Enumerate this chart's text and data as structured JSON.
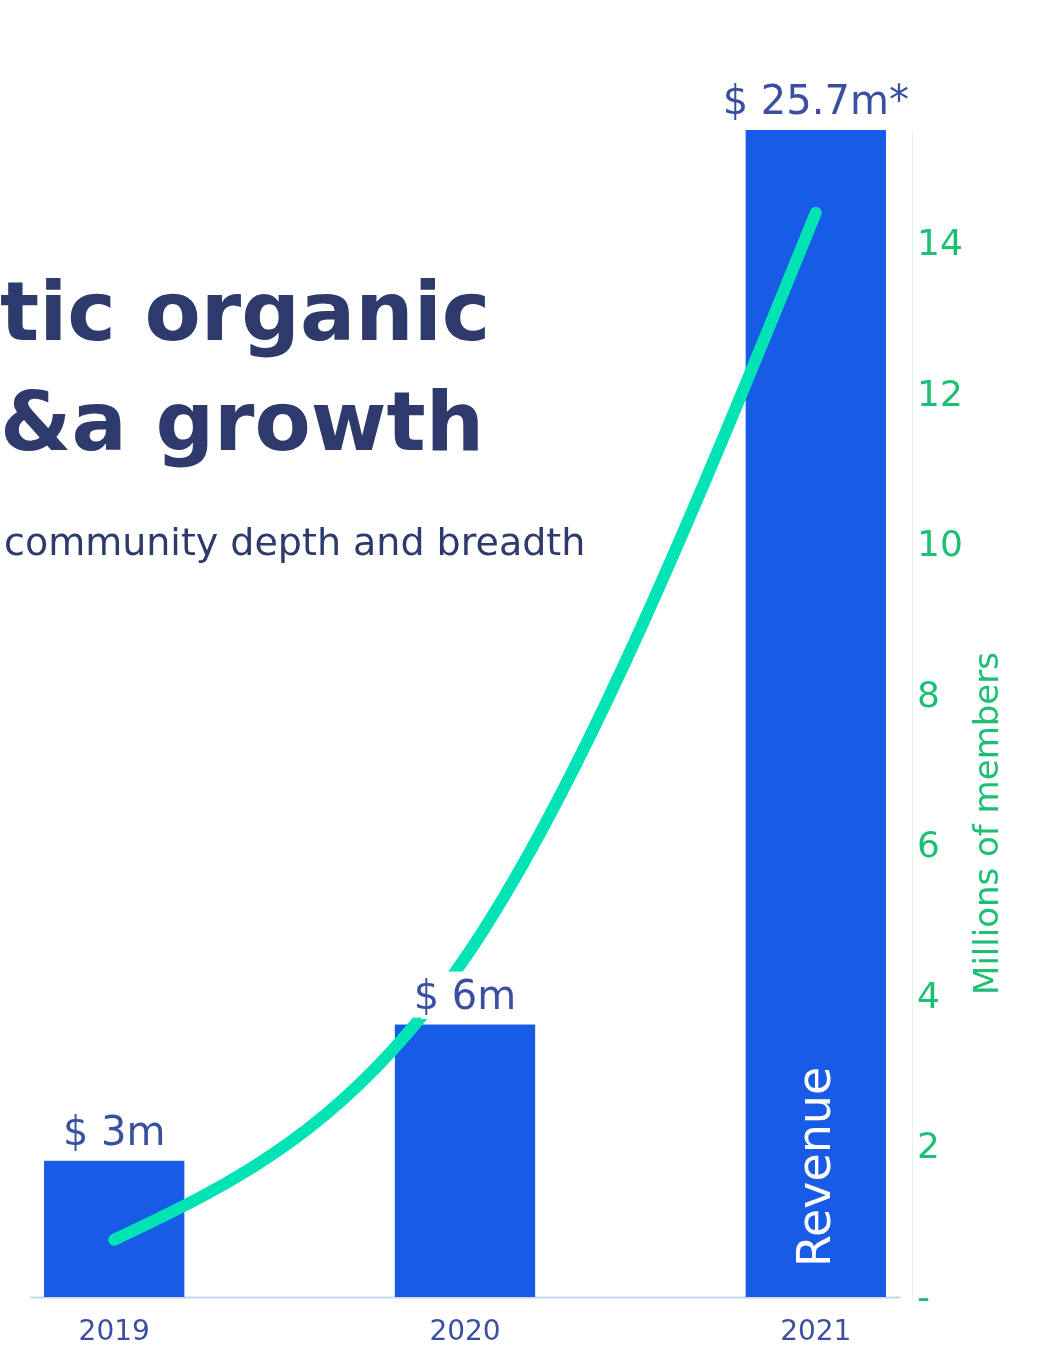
{
  "chart_data": {
    "type": "bar",
    "title": "tic organic\n&a growth",
    "subtitle": "community depth and breadth",
    "y2label": "Millions of members",
    "categories": [
      "2019",
      "2020",
      "2021"
    ],
    "series": [
      {
        "name": "Revenue",
        "color": "#175be6",
        "values": [
          3,
          6,
          25.7
        ],
        "value_labels": [
          "$ 3m",
          "$ 6m",
          "$ 25.7m*"
        ]
      },
      {
        "type": "line",
        "axis": "y2",
        "color": "#00e3b5",
        "values": [
          0.76,
          4.5,
          14.4
        ]
      }
    ],
    "y2lim": [
      0,
      15.5
    ],
    "y2ticks": [
      {
        "value": 0,
        "label": "-"
      },
      2,
      4,
      6,
      8,
      10,
      12,
      14
    ],
    "grid": false,
    "marker": "none",
    "line_style": "solid"
  }
}
